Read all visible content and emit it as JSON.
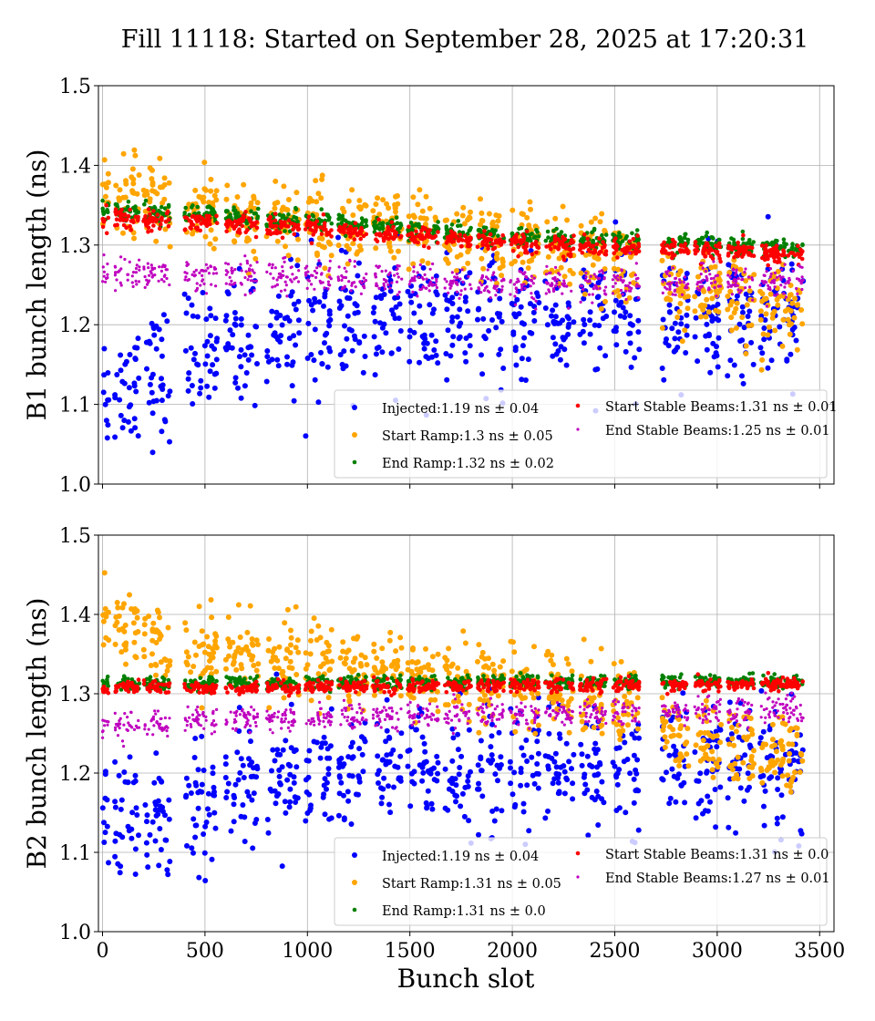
{
  "chart_data": [
    {
      "type": "scatter",
      "title": "Fill 11118: Started on September 28, 2025 at 17:20:31",
      "xlabel": "",
      "ylabel": "B1 bunch length (ns)",
      "xlim": [
        -20,
        3570
      ],
      "ylim": [
        1.0,
        1.5
      ],
      "xticks": [
        "0",
        "500",
        "1000",
        "1500",
        "2000",
        "2500",
        "3000",
        "3500"
      ],
      "yticks": [
        "1.0",
        "1.1",
        "1.2",
        "1.3",
        "1.4",
        "1.5"
      ],
      "grid": true,
      "legend_placement": "bottom-right",
      "trains": [
        [
          0,
          30
        ],
        [
          60,
          180
        ],
        [
          200,
          330
        ],
        [
          400,
          560
        ],
        [
          600,
          760
        ],
        [
          800,
          960
        ],
        [
          990,
          1120
        ],
        [
          1150,
          1290
        ],
        [
          1320,
          1460
        ],
        [
          1490,
          1640
        ],
        [
          1670,
          1800
        ],
        [
          1830,
          1960
        ],
        [
          1990,
          2130
        ],
        [
          2160,
          2300
        ],
        [
          2330,
          2460
        ],
        [
          2490,
          2620
        ],
        [
          2730,
          2860
        ],
        [
          2890,
          3020
        ],
        [
          3050,
          3180
        ],
        [
          3210,
          3420
        ]
      ],
      "series": [
        {
          "name": "Injected:1.19 ns ± 0.04",
          "color": "#0000ff",
          "trend": [
            [
              0,
              1.12
            ],
            [
              300,
              1.14
            ],
            [
              600,
              1.18
            ],
            [
              1000,
              1.2
            ],
            [
              3420,
              1.21
            ]
          ],
          "spread": 0.04
        },
        {
          "name": "Start Ramp:1.3 ns ± 0.05",
          "color": "#ffa500",
          "trend": [
            [
              0,
              1.37
            ],
            [
              500,
              1.34
            ],
            [
              1000,
              1.33
            ],
            [
              2000,
              1.3
            ],
            [
              2600,
              1.28
            ],
            [
              2800,
              1.24
            ],
            [
              3420,
              1.22
            ]
          ],
          "spread": 0.025
        },
        {
          "name": "End Ramp:1.32 ns ± 0.02",
          "color": "#008000",
          "trend": [
            [
              0,
              1.345
            ],
            [
              1000,
              1.33
            ],
            [
              2000,
              1.31
            ],
            [
              3420,
              1.295
            ]
          ],
          "spread": 0.006
        },
        {
          "name": "Start Stable Beams:1.31 ns ± 0.01",
          "color": "#ff0000",
          "trend": [
            [
              0,
              1.335
            ],
            [
              1000,
              1.323
            ],
            [
              2000,
              1.302
            ],
            [
              3420,
              1.288
            ]
          ],
          "spread": 0.006
        },
        {
          "name": "End Stable Beams:1.25 ns ± 0.01",
          "color": "#bf00bf",
          "trend": [
            [
              0,
              1.265
            ],
            [
              1000,
              1.26
            ],
            [
              2000,
              1.25
            ],
            [
              3420,
              1.255
            ]
          ],
          "spread": 0.01
        }
      ]
    },
    {
      "type": "scatter",
      "xlabel": "Bunch slot",
      "ylabel": "B2 bunch length (ns)",
      "xlim": [
        -20,
        3570
      ],
      "ylim": [
        1.0,
        1.5
      ],
      "xticks": [
        "0",
        "500",
        "1000",
        "1500",
        "2000",
        "2500",
        "3000",
        "3500"
      ],
      "yticks": [
        "1.0",
        "1.1",
        "1.2",
        "1.3",
        "1.4",
        "1.5"
      ],
      "grid": true,
      "legend_placement": "bottom-right",
      "trains": [
        [
          0,
          30
        ],
        [
          60,
          180
        ],
        [
          200,
          330
        ],
        [
          400,
          560
        ],
        [
          600,
          760
        ],
        [
          800,
          960
        ],
        [
          990,
          1120
        ],
        [
          1150,
          1290
        ],
        [
          1320,
          1460
        ],
        [
          1490,
          1640
        ],
        [
          1670,
          1800
        ],
        [
          1830,
          1960
        ],
        [
          1990,
          2130
        ],
        [
          2160,
          2300
        ],
        [
          2330,
          2460
        ],
        [
          2490,
          2620
        ],
        [
          2730,
          2860
        ],
        [
          2890,
          3020
        ],
        [
          3050,
          3180
        ],
        [
          3210,
          3420
        ]
      ],
      "series": [
        {
          "name": "Injected:1.19 ns ± 0.04",
          "color": "#0000ff",
          "trend": [
            [
              0,
              1.15
            ],
            [
              300,
              1.14
            ],
            [
              600,
              1.18
            ],
            [
              1000,
              1.2
            ],
            [
              3420,
              1.21
            ]
          ],
          "spread": 0.04
        },
        {
          "name": "Start Ramp:1.31 ns ± 0.05",
          "color": "#ffa500",
          "trend": [
            [
              0,
              1.39
            ],
            [
              500,
              1.35
            ],
            [
              1000,
              1.34
            ],
            [
              2000,
              1.31
            ],
            [
              2600,
              1.29
            ],
            [
              2800,
              1.24
            ],
            [
              3420,
              1.22
            ]
          ],
          "spread": 0.025
        },
        {
          "name": "End Ramp:1.31 ns ± 0.0",
          "color": "#008000",
          "trend": [
            [
              0,
              1.313
            ],
            [
              3420,
              1.316
            ]
          ],
          "spread": 0.004
        },
        {
          "name": "Start Stable Beams:1.31 ns ± 0.0",
          "color": "#ff0000",
          "trend": [
            [
              0,
              1.307
            ],
            [
              3420,
              1.312
            ]
          ],
          "spread": 0.004
        },
        {
          "name": "End Stable Beams:1.27 ns ± 0.01",
          "color": "#bf00bf",
          "trend": [
            [
              0,
              1.26
            ],
            [
              1000,
              1.27
            ],
            [
              2000,
              1.275
            ],
            [
              3420,
              1.28
            ]
          ],
          "spread": 0.008
        }
      ]
    }
  ]
}
